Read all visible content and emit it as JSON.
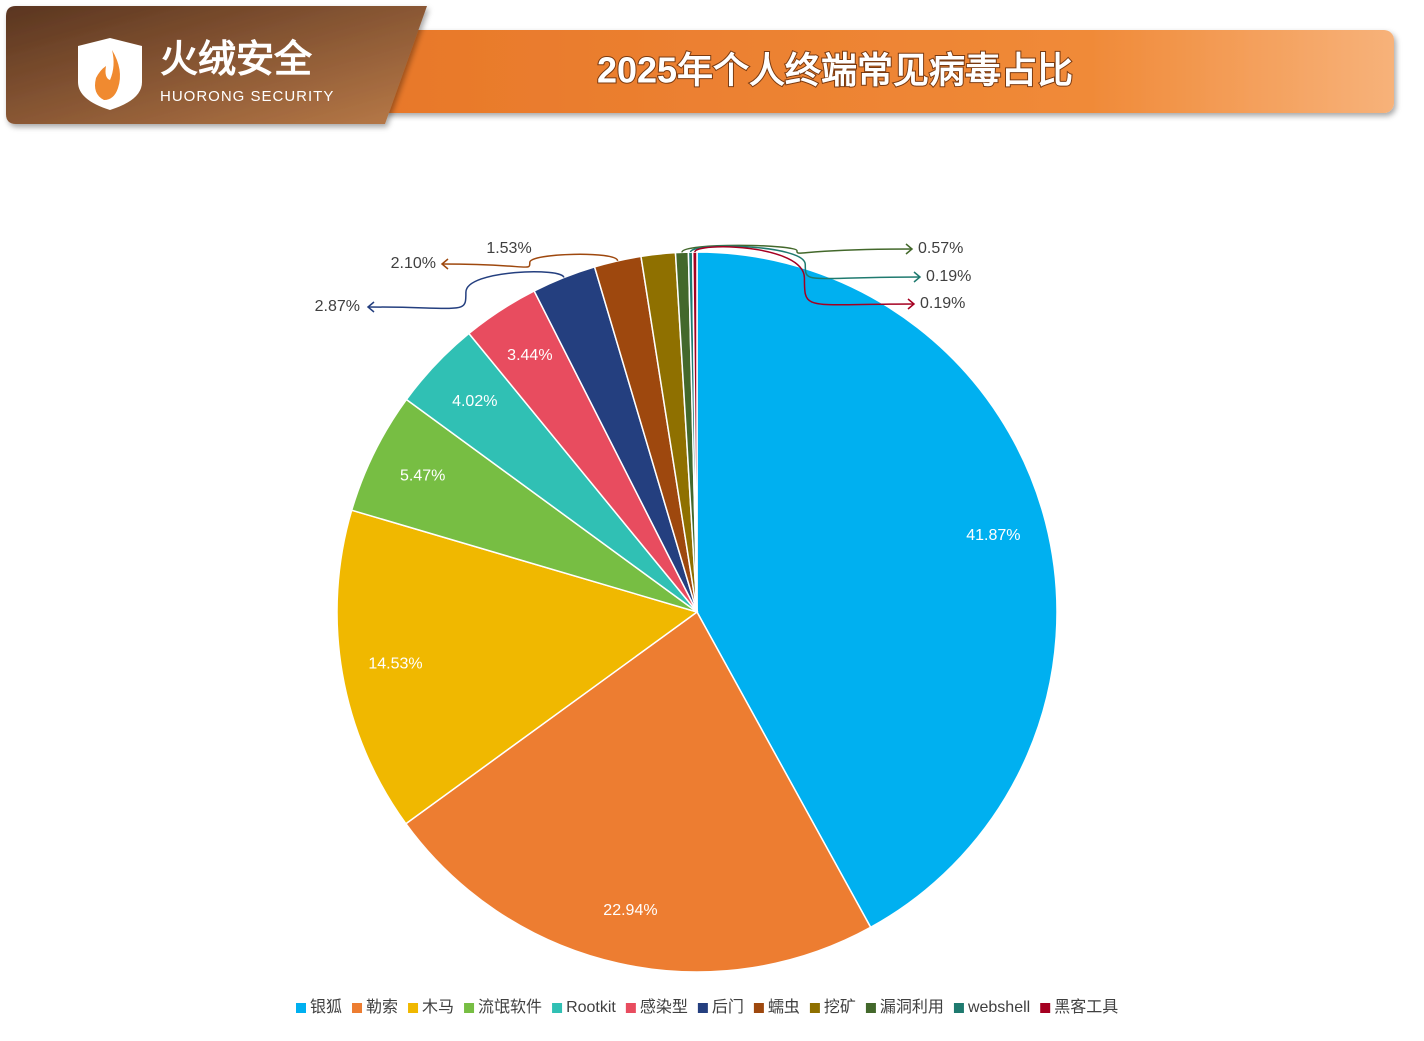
{
  "logo": {
    "name": "火绒安全",
    "subtitle": "HUORONG SECURITY"
  },
  "chart_data": {
    "type": "pie",
    "title": "2025年个人终端常见病毒占比",
    "categories": [
      "银狐",
      "勒索",
      "木马",
      "流氓软件",
      "Rootkit",
      "感染型",
      "后门",
      "蠕虫",
      "挖矿",
      "漏洞利用",
      "webshell",
      "黑客工具"
    ],
    "values": [
      41.87,
      22.94,
      14.53,
      5.47,
      4.02,
      3.44,
      2.87,
      2.1,
      1.53,
      0.57,
      0.19,
      0.19
    ],
    "value_labels": [
      "41.87%",
      "22.94%",
      "14.53%",
      "5.47%",
      "4.02%",
      "3.44%",
      "2.87%",
      "2.10%",
      "1.53%",
      "0.57%",
      "0.19%",
      "0.19%"
    ],
    "colors": [
      "#00b0f0",
      "#ed7d31",
      "#f0b800",
      "#77be43",
      "#30c0b4",
      "#e84c5f",
      "#243f7f",
      "#9e480e",
      "#8f7000",
      "#43682b",
      "#1f7a6f",
      "#a50021"
    ],
    "legend": "bottom"
  }
}
